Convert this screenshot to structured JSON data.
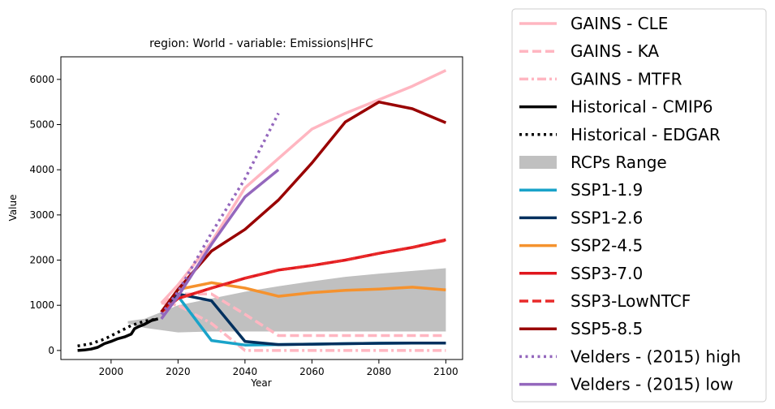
{
  "chart_data": {
    "type": "line",
    "title": "region: World - variable: Emissions|HFC",
    "xlabel": "Year",
    "ylabel": "Value",
    "xlim": [
      1985,
      2105
    ],
    "ylim": [
      -200,
      6500
    ],
    "xticks": [
      2000,
      2020,
      2040,
      2060,
      2080,
      2100
    ],
    "yticks": [
      0,
      1000,
      2000,
      3000,
      4000,
      5000,
      6000
    ],
    "grid": false,
    "legend_position": "outside-right",
    "rcp_range": {
      "name": "RCPs Range",
      "color": "#c0c0c0",
      "x": [
        2005,
        2010,
        2020,
        2030,
        2040,
        2050,
        2060,
        2070,
        2080,
        2090,
        2100
      ],
      "lower": [
        600,
        500,
        400,
        420,
        420,
        420,
        420,
        420,
        420,
        420,
        420
      ],
      "upper": [
        650,
        700,
        1000,
        1150,
        1300,
        1420,
        1530,
        1630,
        1700,
        1760,
        1820
      ]
    },
    "series": [
      {
        "name": "GAINS - CLE",
        "color": "#ffb6c1",
        "dash": "solid",
        "x": [
          2015,
          2020,
          2030,
          2040,
          2050,
          2060,
          2070,
          2080,
          2090,
          2100
        ],
        "y": [
          1050,
          1450,
          2400,
          3600,
          4250,
          4900,
          5250,
          5550,
          5850,
          6200
        ]
      },
      {
        "name": "GAINS - KA",
        "color": "#ffb6c1",
        "dash": "dashed",
        "x": [
          2015,
          2020,
          2030,
          2040,
          2050,
          2060,
          2070,
          2080,
          2090,
          2100
        ],
        "y": [
          1050,
          1250,
          1250,
          800,
          330,
          330,
          330,
          330,
          330,
          330
        ]
      },
      {
        "name": "GAINS - MTFR",
        "color": "#ffb6c1",
        "dash": "dashdot",
        "x": [
          2015,
          2020,
          2030,
          2040,
          2050,
          2060,
          2070,
          2080,
          2090,
          2100
        ],
        "y": [
          1050,
          1000,
          600,
          0,
          0,
          0,
          0,
          0,
          0,
          0
        ]
      },
      {
        "name": "Historical - CMIP6",
        "color": "#000000",
        "dash": "solid",
        "x": [
          1990,
          1992,
          1994,
          1996,
          1998,
          2000,
          2002,
          2004,
          2006,
          2007,
          2008,
          2010,
          2012,
          2014
        ],
        "y": [
          0,
          10,
          30,
          70,
          150,
          200,
          260,
          300,
          360,
          480,
          520,
          580,
          660,
          700
        ]
      },
      {
        "name": "Historical - EDGAR",
        "color": "#000000",
        "dash": "dotted",
        "x": [
          1990,
          1994,
          1998,
          2002,
          2006,
          2010,
          2014
        ],
        "y": [
          100,
          150,
          250,
          400,
          550,
          650,
          700
        ]
      },
      {
        "name": "SSP1-1.9",
        "color": "#1aa3c9",
        "dash": "solid",
        "x": [
          2015,
          2020,
          2030,
          2040,
          2050,
          2060,
          2070,
          2080,
          2090,
          2100
        ],
        "y": [
          850,
          1200,
          220,
          120,
          130,
          140,
          150,
          160,
          165,
          165
        ]
      },
      {
        "name": "SSP1-2.6",
        "color": "#00305e",
        "dash": "solid",
        "x": [
          2015,
          2020,
          2030,
          2040,
          2050,
          2060,
          2070,
          2080,
          2090,
          2100
        ],
        "y": [
          850,
          1250,
          1100,
          200,
          130,
          140,
          150,
          160,
          165,
          165
        ]
      },
      {
        "name": "SSP2-4.5",
        "color": "#f5922e",
        "dash": "solid",
        "x": [
          2015,
          2020,
          2030,
          2040,
          2050,
          2060,
          2070,
          2080,
          2090,
          2100
        ],
        "y": [
          850,
          1350,
          1500,
          1380,
          1200,
          1280,
          1330,
          1360,
          1400,
          1340
        ]
      },
      {
        "name": "SSP3-7.0",
        "color": "#e0161d",
        "dash": "solid",
        "x": [
          2015,
          2020,
          2030,
          2040,
          2050,
          2060,
          2070,
          2080,
          2090,
          2100
        ],
        "y": [
          850,
          1150,
          1380,
          1600,
          1780,
          1880,
          2000,
          2150,
          2280,
          2450
        ]
      },
      {
        "name": "SSP3-LowNTCF",
        "color": "#e82a2a",
        "dash": "dashed",
        "x": [
          2015,
          2020,
          2030,
          2040,
          2050,
          2060,
          2070,
          2080,
          2090,
          2100
        ],
        "y": [
          850,
          1150,
          1380,
          1600,
          1780,
          1880,
          2000,
          2150,
          2280,
          2440
        ]
      },
      {
        "name": "SSP5-8.5",
        "color": "#990000",
        "dash": "solid",
        "x": [
          2015,
          2020,
          2030,
          2040,
          2050,
          2060,
          2070,
          2080,
          2090,
          2100
        ],
        "y": [
          850,
          1350,
          2200,
          2680,
          3330,
          4150,
          5060,
          5500,
          5350,
          5040
        ]
      },
      {
        "name": "Velders - (2015) high",
        "color": "#9467bd",
        "dash": "dotted",
        "x": [
          2015,
          2020,
          2030,
          2040,
          2050
        ],
        "y": [
          800,
          1300,
          2600,
          3800,
          5250
        ]
      },
      {
        "name": "Velders - (2015) low",
        "color": "#9467bd",
        "dash": "solid",
        "x": [
          2015,
          2020,
          2030,
          2040,
          2050
        ],
        "y": [
          700,
          1200,
          2350,
          3400,
          4000
        ]
      }
    ]
  }
}
